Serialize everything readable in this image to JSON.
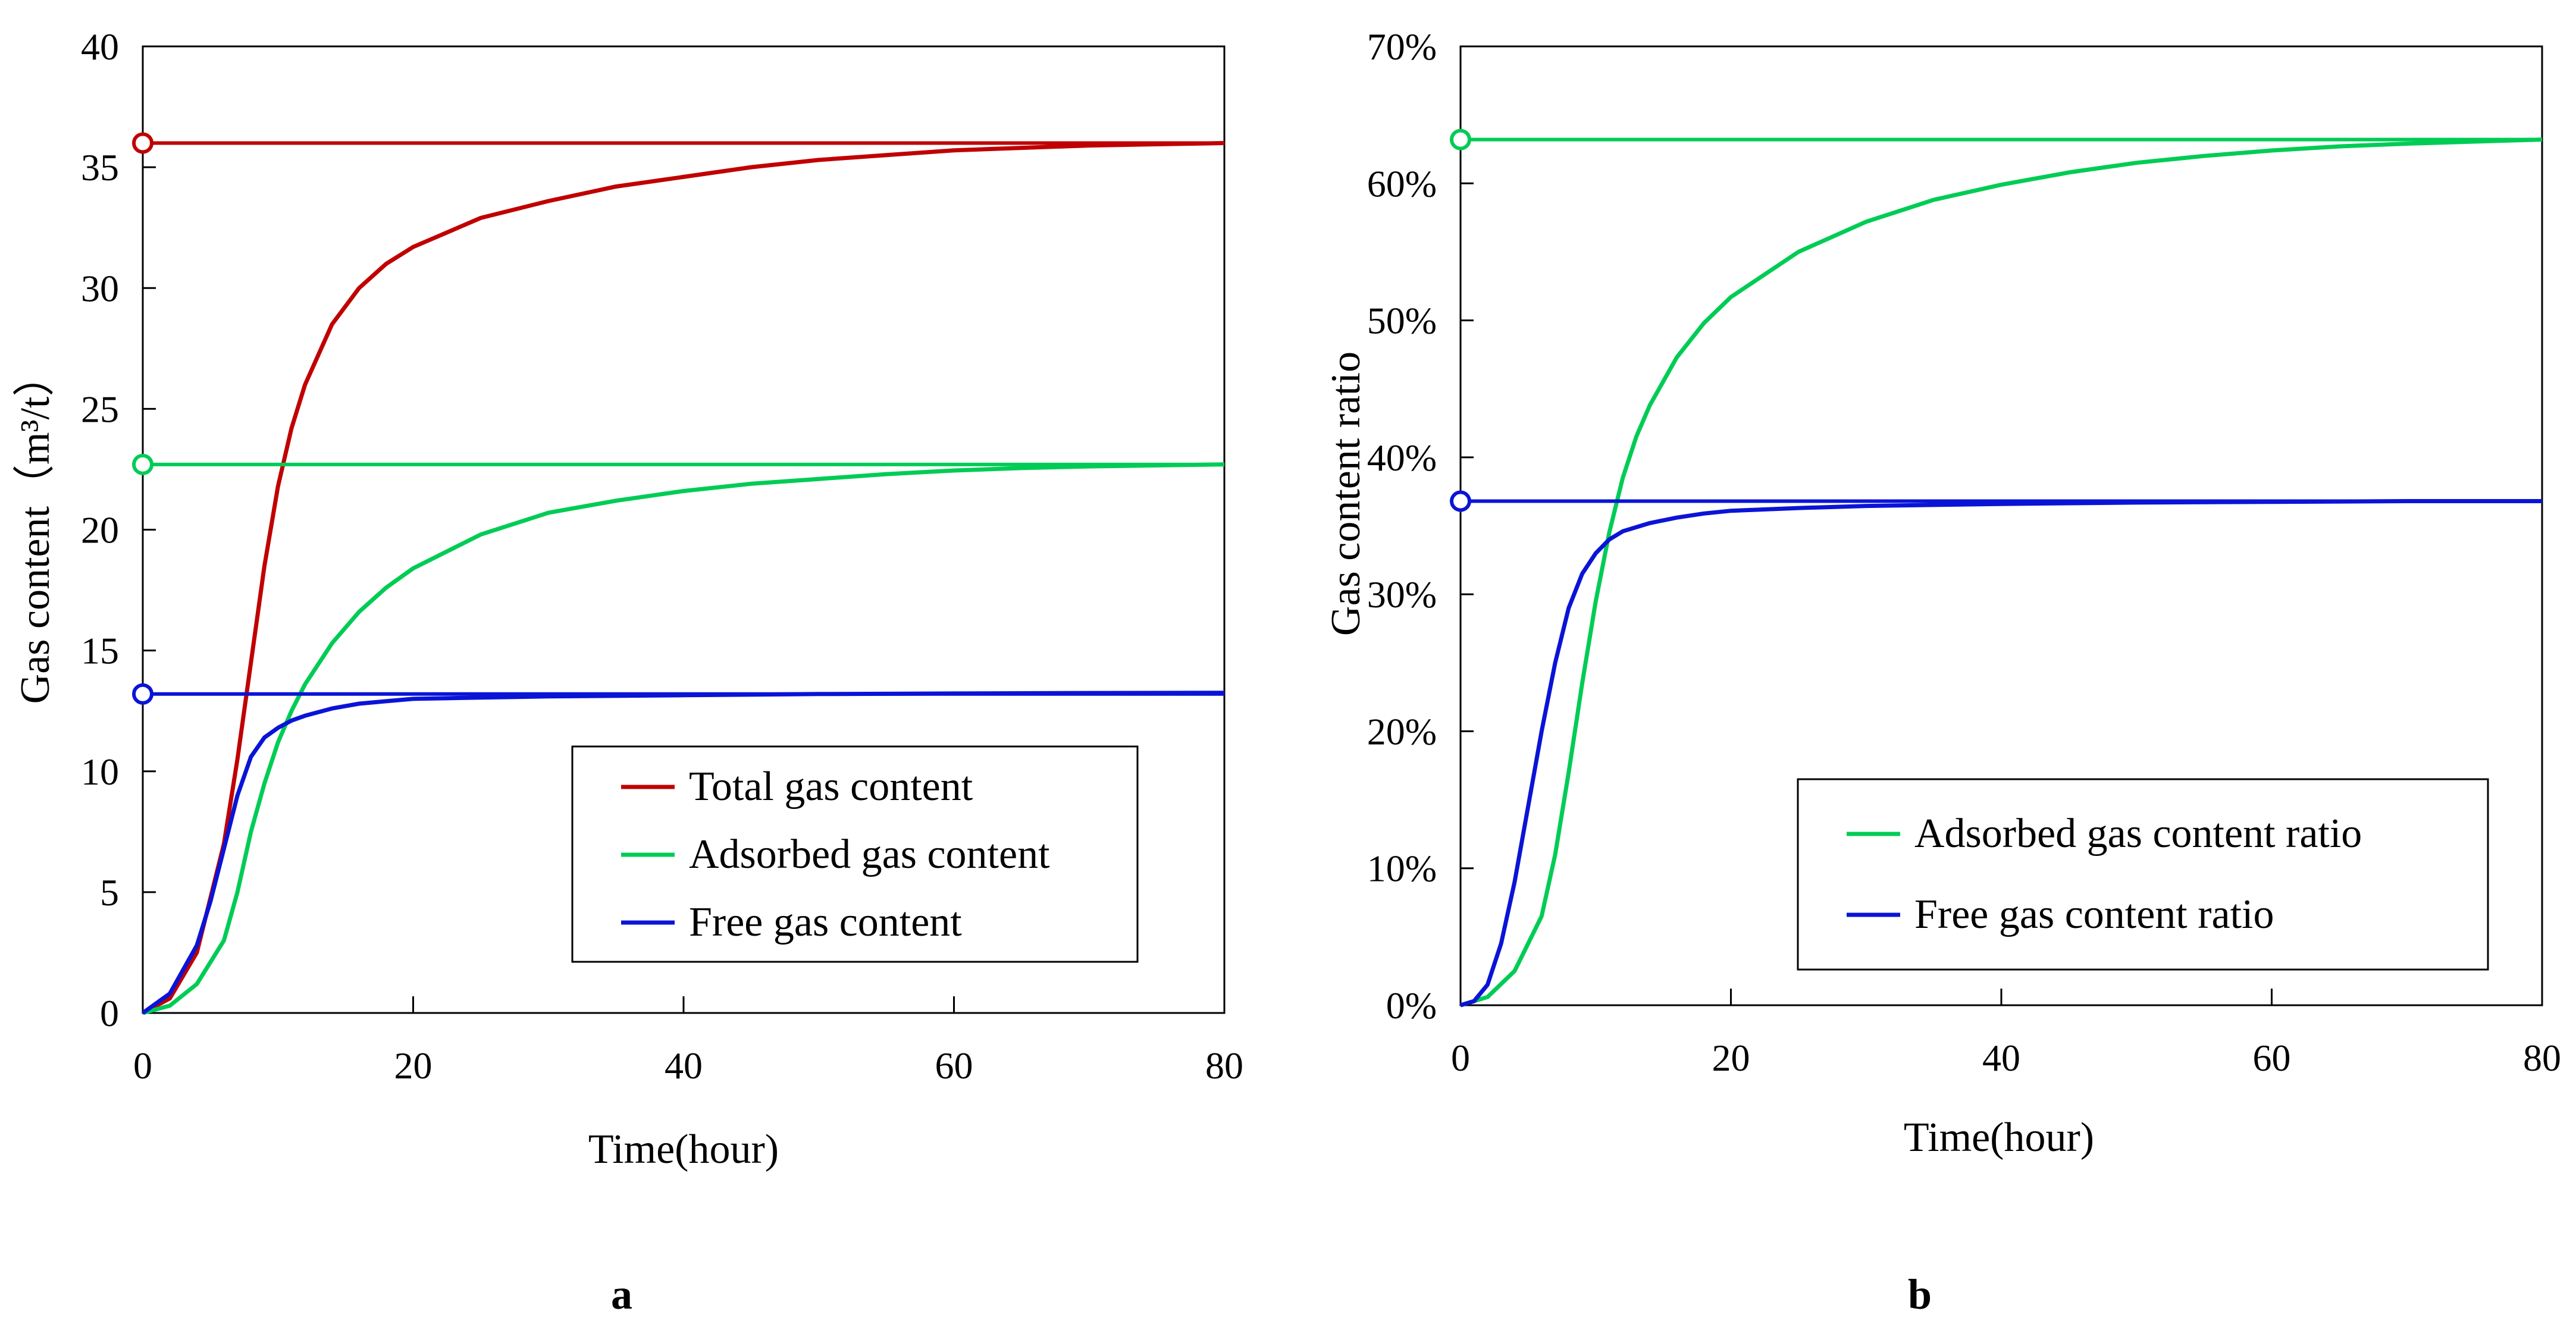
{
  "colors": {
    "red": "#c00000",
    "green": "#00cc55",
    "blue": "#0a14d6"
  },
  "chart_data": [
    {
      "type": "line",
      "panel_label": "a",
      "xlabel": "Time(hour)",
      "ylabel": "Gas content（m³/t）",
      "xlim": [
        0,
        80
      ],
      "ylim": [
        0,
        40
      ],
      "x_ticks": [
        0,
        20,
        40,
        60,
        80
      ],
      "y_ticks": [
        0,
        5,
        10,
        15,
        20,
        25,
        30,
        35,
        40
      ],
      "y_tick_labels": [
        "0",
        "5",
        "10",
        "15",
        "20",
        "25",
        "30",
        "35",
        "40"
      ],
      "legend_position": "lower-right",
      "series": [
        {
          "name": "Total gas content",
          "color": "#c00000",
          "x": [
            0,
            2,
            4,
            6,
            7,
            8,
            9,
            10,
            11,
            12,
            14,
            16,
            18,
            20,
            25,
            30,
            35,
            40,
            45,
            50,
            55,
            60,
            65,
            70,
            75,
            80
          ],
          "y": [
            0,
            0.6,
            2.5,
            7.0,
            10.5,
            14.5,
            18.5,
            21.8,
            24.2,
            26.0,
            28.5,
            30.0,
            31.0,
            31.7,
            32.9,
            33.6,
            34.2,
            34.6,
            35.0,
            35.3,
            35.5,
            35.7,
            35.8,
            35.9,
            35.95,
            36.0
          ],
          "asymptote": 36.0
        },
        {
          "name": "Adsorbed gas content",
          "color": "#00cc55",
          "x": [
            0,
            2,
            4,
            6,
            7,
            8,
            9,
            10,
            11,
            12,
            14,
            16,
            18,
            20,
            25,
            30,
            35,
            40,
            45,
            50,
            55,
            60,
            65,
            70,
            75,
            80
          ],
          "y": [
            0,
            0.3,
            1.2,
            3.0,
            5.0,
            7.5,
            9.5,
            11.2,
            12.5,
            13.6,
            15.3,
            16.6,
            17.6,
            18.4,
            19.8,
            20.7,
            21.2,
            21.6,
            21.9,
            22.1,
            22.3,
            22.45,
            22.55,
            22.62,
            22.66,
            22.7
          ],
          "asymptote": 22.7
        },
        {
          "name": "Free gas content",
          "color": "#0a14d6",
          "x": [
            0,
            2,
            4,
            5,
            6,
            7,
            8,
            9,
            10,
            11,
            12,
            14,
            16,
            18,
            20,
            25,
            30,
            40,
            50,
            60,
            70,
            80
          ],
          "y": [
            0,
            0.8,
            2.8,
            4.6,
            6.8,
            9.0,
            10.6,
            11.4,
            11.8,
            12.1,
            12.3,
            12.6,
            12.8,
            12.9,
            13.0,
            13.05,
            13.1,
            13.15,
            13.2,
            13.22,
            13.24,
            13.25
          ],
          "asymptote": 13.2
        }
      ]
    },
    {
      "type": "line",
      "panel_label": "b",
      "xlabel": "Time(hour)",
      "ylabel": "Gas content ratio",
      "xlim": [
        0,
        80
      ],
      "ylim": [
        0,
        70
      ],
      "x_ticks": [
        0,
        20,
        40,
        60,
        80
      ],
      "y_ticks": [
        0,
        10,
        20,
        30,
        40,
        50,
        60,
        70
      ],
      "y_tick_labels": [
        "0%",
        "10%",
        "20%",
        "30%",
        "40%",
        "50%",
        "60%",
        "70%"
      ],
      "legend_position": "lower-right",
      "series": [
        {
          "name": "Adsorbed gas content ratio",
          "color": "#00cc55",
          "x": [
            0,
            2,
            4,
            6,
            7,
            8,
            9,
            10,
            11,
            12,
            13,
            14,
            16,
            18,
            20,
            25,
            30,
            35,
            40,
            45,
            50,
            55,
            60,
            65,
            70,
            75,
            80
          ],
          "y": [
            0,
            0.6,
            2.5,
            6.5,
            11.0,
            17.0,
            23.5,
            29.5,
            34.5,
            38.5,
            41.5,
            43.8,
            47.3,
            49.8,
            51.7,
            55.0,
            57.2,
            58.8,
            59.9,
            60.8,
            61.5,
            62.0,
            62.4,
            62.7,
            62.9,
            63.05,
            63.2
          ],
          "asymptote": 63.2
        },
        {
          "name": "Free gas content ratio",
          "color": "#0a14d6",
          "x": [
            0,
            1,
            2,
            3,
            4,
            5,
            6,
            7,
            8,
            9,
            10,
            11,
            12,
            14,
            16,
            18,
            20,
            25,
            30,
            40,
            50,
            60,
            70,
            80
          ],
          "y": [
            0,
            0.3,
            1.5,
            4.5,
            9.0,
            14.5,
            20.0,
            25.0,
            29.0,
            31.5,
            33.0,
            34.0,
            34.6,
            35.2,
            35.6,
            35.9,
            36.1,
            36.3,
            36.45,
            36.6,
            36.7,
            36.75,
            36.8,
            36.8
          ],
          "asymptote": 36.8
        }
      ]
    }
  ]
}
